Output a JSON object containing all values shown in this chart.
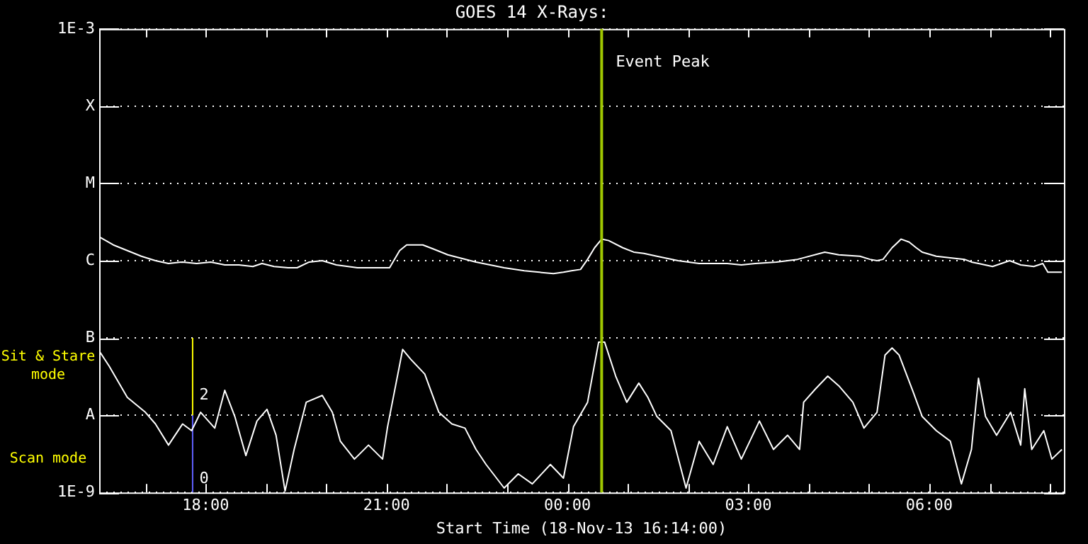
{
  "chart_data": {
    "type": "line",
    "title": "GOES 14 X-Rays:",
    "xlabel": "Start Time (18-Nov-13 16:14:00)",
    "xlim": [
      "--11-18T16:14",
      "--11-19T08:14"
    ],
    "xticks": [
      {
        "value": "--11-18T17:00",
        "label": null
      },
      {
        "value": "--11-18T18:00",
        "label": "18:00"
      },
      {
        "value": "--11-18T19:00",
        "label": null
      },
      {
        "value": "--11-18T20:00",
        "label": null
      },
      {
        "value": "--11-18T21:00",
        "label": "21:00"
      },
      {
        "value": "--11-18T22:00",
        "label": null
      },
      {
        "value": "--11-18T23:00",
        "label": null
      },
      {
        "value": "--11-19T00:00",
        "label": "00:00"
      },
      {
        "value": "--11-19T01:00",
        "label": null
      },
      {
        "value": "--11-19T02:00",
        "label": null
      },
      {
        "value": "--11-19T03:00",
        "label": "03:00"
      },
      {
        "value": "--11-19T04:00",
        "label": null
      },
      {
        "value": "--11-19T05:00",
        "label": null
      },
      {
        "value": "--11-19T06:00",
        "label": "06:00"
      },
      {
        "value": "--11-19T07:00",
        "label": null
      },
      {
        "value": "--11-19T08:00",
        "label": null
      }
    ],
    "ylim": [
      1e-09,
      0.001
    ],
    "log": true,
    "yticks": [
      {
        "value": 1e-09,
        "label": "1E-9"
      },
      {
        "value": 1e-08,
        "label": "A"
      },
      {
        "value": 1e-07,
        "label": "B"
      },
      {
        "value": 1e-06,
        "label": "C"
      },
      {
        "value": 1e-05,
        "label": "M"
      },
      {
        "value": 0.0001,
        "label": "X"
      },
      {
        "value": 0.001,
        "label": "1E-3"
      }
    ],
    "grid": "y",
    "legend": false,
    "marker": "none",
    "line_style": "solid",
    "ref_lines": [
      {
        "axis": "x",
        "value": "--11-19T00:34",
        "label": "Event Peak",
        "color": "#a0c800"
      }
    ],
    "annotations": [
      "Sit & Stare mode",
      "Scan mode",
      {
        "text": "2",
        "x": "--11-18T17:51",
        "y": 1.8e-08
      },
      {
        "text": "0",
        "x": "--11-18T17:51",
        "y": 1.5e-09
      }
    ],
    "series": [
      {
        "color": "#ffffff",
        "x": [
          "--11-18T16:15",
          "--11-18T16:28",
          "--11-18T16:42",
          "--11-18T16:56",
          "--11-18T17:10",
          "--11-18T17:23",
          "--11-18T17:37",
          "--11-18T17:51",
          "--11-18T18:05",
          "--11-18T18:19",
          "--11-18T18:33",
          "--11-18T18:47",
          "--11-18T18:56",
          "--11-18T19:08",
          "--11-18T19:22",
          "--11-18T19:31",
          "--11-18T19:43",
          "--11-18T19:56",
          "--11-18T20:10",
          "--11-18T20:31",
          "--11-18T21:03",
          "--11-18T21:13",
          "--11-18T21:20",
          "--11-18T21:36",
          "--11-18T21:47",
          "--11-18T22:01",
          "--11-18T22:29",
          "--11-18T22:57",
          "--11-18T23:17",
          "--11-18T23:46",
          "--11-18T23:56",
          "--11-19T00:04",
          "--11-19T00:13",
          "--11-19T00:20",
          "--11-19T00:27",
          "--11-19T00:34",
          "--11-19T00:41",
          "--11-19T00:55",
          "--11-19T01:06",
          "--11-19T01:16",
          "--11-19T01:29",
          "--11-19T01:50",
          "--11-19T02:11",
          "--11-19T02:39",
          "--11-19T02:53",
          "--11-19T03:07",
          "--11-19T03:28",
          "--11-19T03:49",
          "--11-19T04:16",
          "--11-19T04:30",
          "--11-19T04:51",
          "--11-19T05:01",
          "--11-19T05:08",
          "--11-19T05:14",
          "--11-19T05:23",
          "--11-19T05:26",
          "--11-19T05:32",
          "--11-19T05:40",
          "--11-19T05:47",
          "--11-19T05:53",
          "--11-19T06:07",
          "--11-19T06:35",
          "--11-19T06:42",
          "--11-19T06:49",
          "--11-19T07:03",
          "--11-19T07:20",
          "--11-19T07:31",
          "--11-19T07:44",
          "--11-19T07:53",
          "--11-19T07:58",
          "--11-19T08:12"
        ],
        "values": [
          2e-06,
          1.6e-06,
          1.35e-06,
          1.14e-06,
          1e-06,
          9.2e-07,
          9.6e-07,
          9.2e-07,
          9.6e-07,
          8.8e-07,
          8.8e-07,
          8.4e-07,
          9.2e-07,
          8.4e-07,
          8.1e-07,
          8.1e-07,
          9.6e-07,
          1e-06,
          8.8e-07,
          8.1e-07,
          8.1e-07,
          1.35e-06,
          1.6e-06,
          1.6e-06,
          1.41e-06,
          1.19e-06,
          9.6e-07,
          8.1e-07,
          7.4e-07,
          6.8e-07,
          7.1e-07,
          7.4e-07,
          7.7e-07,
          1.04e-06,
          1.47e-06,
          1.9e-06,
          1.82e-06,
          1.47e-06,
          1.29e-06,
          1.24e-06,
          1.14e-06,
          1e-06,
          9.2e-07,
          9.2e-07,
          8.8e-07,
          9.2e-07,
          9.6e-07,
          1.04e-06,
          1.29e-06,
          1.19e-06,
          1.14e-06,
          1.04e-06,
          1e-06,
          1.04e-06,
          1.47e-06,
          1.6e-06,
          1.9e-06,
          1.74e-06,
          1.47e-06,
          1.29e-06,
          1.14e-06,
          1.04e-06,
          9.6e-07,
          9.2e-07,
          8.4e-07,
          1e-06,
          8.8e-07,
          8.4e-07,
          9.2e-07,
          7.1e-07,
          7.1e-07
        ]
      },
      {
        "color": "#ffffff",
        "x": [
          "--11-18T16:15",
          "--11-18T16:24",
          "--11-18T16:42",
          "--11-18T17:00",
          "--11-18T17:10",
          "--11-18T17:23",
          "--11-18T17:37",
          "--11-18T17:46",
          "--11-18T17:55",
          "--11-18T18:09",
          "--11-18T18:19",
          "--11-18T18:29",
          "--11-18T18:40",
          "--11-18T18:51",
          "--11-18T19:01",
          "--11-18T19:10",
          "--11-18T19:19",
          "--11-18T19:28",
          "--11-18T19:40",
          "--11-18T19:56",
          "--11-18T20:06",
          "--11-18T20:14",
          "--11-18T20:28",
          "--11-18T20:42",
          "--11-18T20:56",
          "--11-18T21:01",
          "--11-18T21:16",
          "--11-18T21:24",
          "--11-18T21:38",
          "--11-18T21:52",
          "--11-18T22:05",
          "--11-18T22:18",
          "--11-18T22:29",
          "--11-18T22:39",
          "--11-18T22:57",
          "--11-18T23:11",
          "--11-18T23:25",
          "--11-18T23:43",
          "--11-18T23:56",
          "--11-19T00:06",
          "--11-19T00:20",
          "--11-19T00:31",
          "--11-19T00:37",
          "--11-19T00:48",
          "--11-19T00:59",
          "--11-19T01:11",
          "--11-19T01:20",
          "--11-19T01:29",
          "--11-19T01:43",
          "--11-19T01:58",
          "--11-19T02:11",
          "--11-19T02:25",
          "--11-19T02:39",
          "--11-19T02:53",
          "--11-19T03:11",
          "--11-19T03:25",
          "--11-19T03:39",
          "--11-19T03:51",
          "--11-19T03:55",
          "--11-19T04:07",
          "--11-19T04:19",
          "--11-19T04:30",
          "--11-19T04:44",
          "--11-19T04:55",
          "--11-19T05:08",
          "--11-19T05:16",
          "--11-19T05:23",
          "--11-19T05:30",
          "--11-19T05:44",
          "--11-19T05:53",
          "--11-19T06:07",
          "--11-19T06:21",
          "--11-19T06:32",
          "--11-19T06:42",
          "--11-19T06:49",
          "--11-19T06:56",
          "--11-19T07:07",
          "--11-19T07:21",
          "--11-19T07:31",
          "--11-19T07:35",
          "--11-19T07:42",
          "--11-19T07:54",
          "--11-19T08:02",
          "--11-19T08:12"
        ],
        "values": [
          6.5e-08,
          4.3e-08,
          1.7e-08,
          1.09e-08,
          7.7e-09,
          4.1e-09,
          7.7e-09,
          6.3e-09,
          1.09e-08,
          6.8e-09,
          2.1e-08,
          9.6e-09,
          3e-09,
          8.4e-09,
          1.19e-08,
          5.5e-09,
          1.04e-09,
          3.6e-09,
          1.47e-08,
          1.8e-08,
          1.09e-08,
          4.6e-09,
          2.7e-09,
          4.1e-09,
          2.7e-09,
          7.1e-09,
          7.1e-08,
          5.3e-08,
          3.4e-08,
          1.09e-08,
          7.7e-09,
          6.8e-09,
          3.6e-09,
          2.3e-09,
          1.14e-09,
          1.74e-09,
          1.29e-09,
          2.3e-09,
          1.53e-09,
          7.1e-09,
          1.47e-08,
          8.8e-08,
          8.8e-08,
          3.2e-08,
          1.47e-08,
          2.6e-08,
          1.7e-08,
          9.6e-09,
          6.3e-09,
          1.14e-09,
          4.6e-09,
          2.3e-09,
          7.1e-09,
          2.7e-09,
          8.4e-09,
          3.6e-09,
          5.5e-09,
          3.6e-09,
          1.47e-08,
          2.2e-08,
          3.2e-08,
          2.4e-08,
          1.47e-08,
          6.8e-09,
          1.09e-08,
          6e-08,
          7.4e-08,
          6e-08,
          2e-08,
          9.6e-09,
          6.3e-09,
          4.6e-09,
          1.29e-09,
          3.6e-09,
          3e-08,
          9.6e-09,
          5.5e-09,
          1.09e-08,
          4.1e-09,
          2.2e-08,
          3.6e-09,
          6.3e-09,
          2.7e-09,
          3.6e-09
        ]
      },
      {
        "color": "#ffff00",
        "x": [
          "--11-18T17:47",
          "--11-18T17:47"
        ],
        "values": [
          1e-08,
          1e-07
        ]
      },
      {
        "color": "#6060ff",
        "x": [
          "--11-18T17:47",
          "--11-18T17:47"
        ],
        "values": [
          1e-09,
          1e-08
        ]
      }
    ]
  }
}
